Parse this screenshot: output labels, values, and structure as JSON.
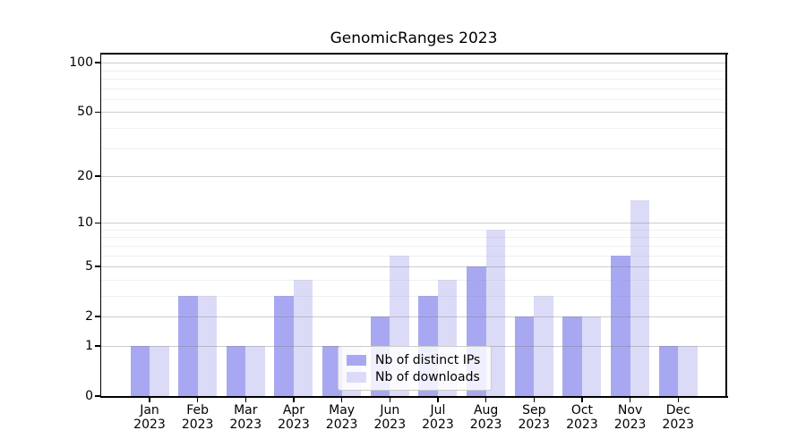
{
  "title": "GenomicRanges 2023",
  "chart_data": {
    "type": "bar",
    "title": "GenomicRanges 2023",
    "y_scale": "log1p",
    "grid": true,
    "ylim": [
      0,
      113
    ],
    "y_major_ticks": [
      0,
      1,
      2,
      5,
      10,
      20,
      50,
      100
    ],
    "y_minor_ticks": [
      3,
      4,
      6,
      7,
      8,
      9,
      30,
      40,
      60,
      70,
      80,
      90
    ],
    "categories": [
      {
        "month": "Jan",
        "year": "2023"
      },
      {
        "month": "Feb",
        "year": "2023"
      },
      {
        "month": "Mar",
        "year": "2023"
      },
      {
        "month": "Apr",
        "year": "2023"
      },
      {
        "month": "May",
        "year": "2023"
      },
      {
        "month": "Jun",
        "year": "2023"
      },
      {
        "month": "Jul",
        "year": "2023"
      },
      {
        "month": "Aug",
        "year": "2023"
      },
      {
        "month": "Sep",
        "year": "2023"
      },
      {
        "month": "Oct",
        "year": "2023"
      },
      {
        "month": "Nov",
        "year": "2023"
      },
      {
        "month": "Dec",
        "year": "2023"
      }
    ],
    "series": [
      {
        "name": "Nb of distinct IPs",
        "color": "#a8a8f2",
        "values": [
          1,
          3,
          1,
          3,
          1,
          2,
          3,
          5,
          2,
          2,
          6,
          1
        ]
      },
      {
        "name": "Nb of downloads",
        "color": "#dbdbf8",
        "values": [
          1,
          3,
          1,
          4,
          1,
          6,
          4,
          9,
          3,
          2,
          14,
          1
        ]
      }
    ],
    "legend_position": "inside-lower-center"
  },
  "legend": {
    "items": [
      {
        "label": "Nb of distinct IPs",
        "color": "#a8a8f2"
      },
      {
        "label": "Nb of downloads",
        "color": "#dbdbf8"
      }
    ]
  },
  "colors": {
    "background": "#ffffff",
    "bar_ips": "#a8a8f2",
    "bar_downloads": "#dbdbf8",
    "major_grid": "#c9c9c9",
    "minor_grid": "#ebebeb",
    "spine": "#000000",
    "text": "#000000",
    "legend_border": "#cbcbcb"
  }
}
